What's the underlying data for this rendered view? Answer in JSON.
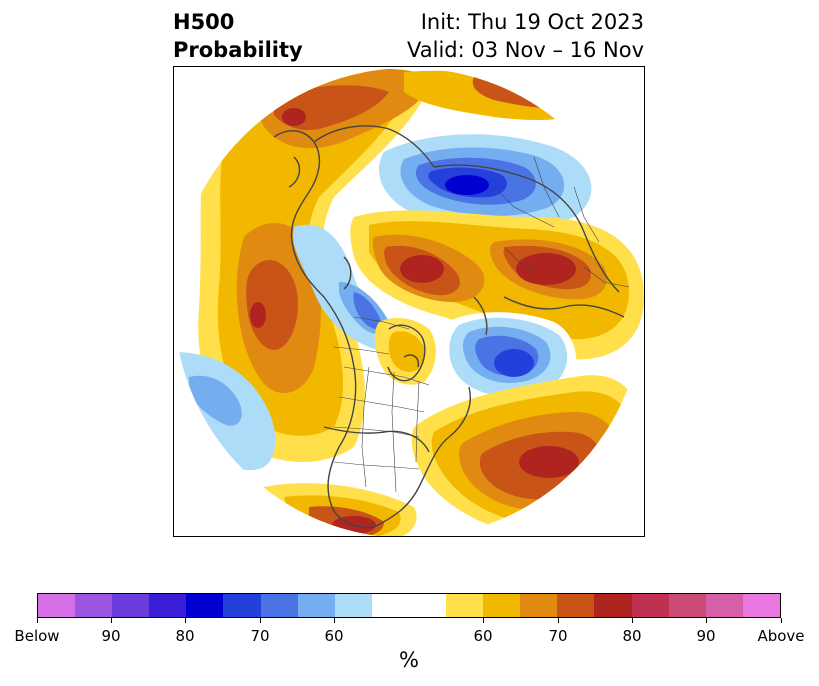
{
  "title": {
    "line1": "H500",
    "line2": "Probability",
    "init": "Init: Thu 19 Oct 2023",
    "valid": "Valid: 03 Nov – 16 Nov"
  },
  "colorbar": {
    "unit": "%",
    "colors": [
      "#d670e6",
      "#9b55e0",
      "#6b3ddc",
      "#3a1ed8",
      "#0000d0",
      "#2440dc",
      "#4a74e4",
      "#74aef0",
      "#acdcf8",
      "#ffffff",
      "#ffffff",
      "#ffe04a",
      "#f2b800",
      "#e08a12",
      "#c85418",
      "#b02420",
      "#c03050",
      "#cc4a78",
      "#d660a8",
      "#e878e0"
    ],
    "tick_labels": [
      "Below",
      "90",
      "80",
      "70",
      "60",
      "60",
      "70",
      "80",
      "90",
      "Above"
    ]
  },
  "map": {
    "projection": "polar stereographic (North America / Arctic)",
    "colors": {
      "light_yellow": "#ffe04a",
      "yellow": "#f2b800",
      "orange": "#e08a12",
      "dark_orange": "#c85418",
      "red": "#b02420",
      "pale_blue": "#acdcf8",
      "light_blue": "#74aef0",
      "mid_blue": "#4a74e4",
      "blue": "#2440dc",
      "deep_blue": "#0000d0",
      "coastline": "#444444"
    }
  }
}
